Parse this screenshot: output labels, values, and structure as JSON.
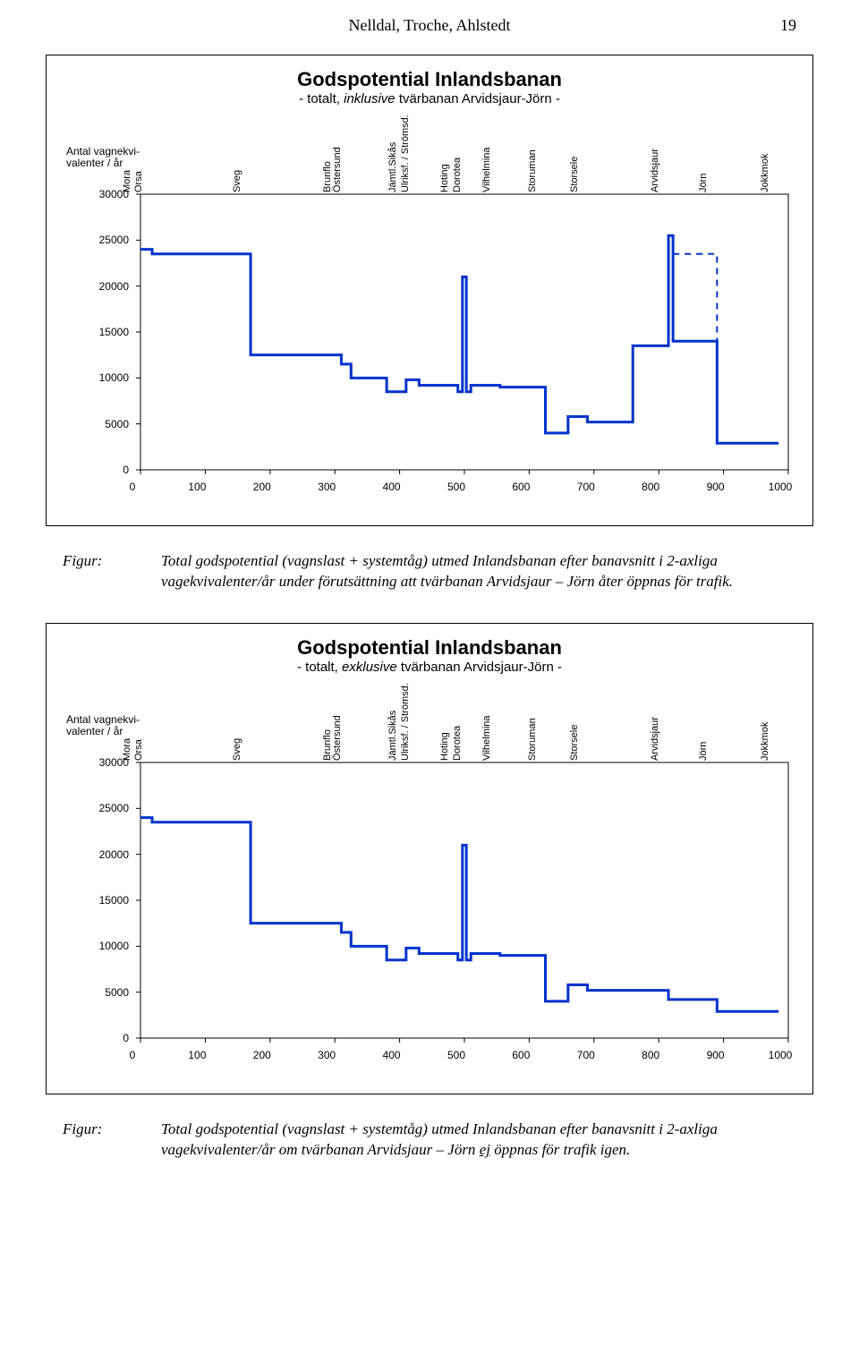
{
  "header": {
    "authors": "Nelldal, Troche, Ahlstedt",
    "page_num": "19"
  },
  "caption1": {
    "lead": "Figur:",
    "text": "Total godspotential (vagnslast + systemtåg) utmed Inlandsbanan efter banavsnitt i 2-axliga vagekvivalenter/år under förutsättning att tvärbanan Arvidsjaur – Jörn åter öppnas för trafik."
  },
  "caption2": {
    "lead": "Figur:",
    "prefix": "Total godspotential (vagnslast + systemtåg) utmed Inlandsbanan efter banavsnitt i 2-axliga vagekvivalenter/år om tvärbanan Arvidsjaur – Jörn ",
    "under": "ej",
    "suffix": " öppnas för trafik igen."
  },
  "chart_common": {
    "ylabel": "Antal vagnekvi-\nvalenter / år",
    "x_range": [
      0,
      1000
    ],
    "y_range": [
      0,
      30000
    ],
    "x_ticks": [
      0,
      100,
      200,
      300,
      400,
      500,
      600,
      700,
      800,
      900,
      1000
    ],
    "y_ticks": [
      0,
      5000,
      10000,
      15000,
      20000,
      25000,
      30000
    ],
    "line_color": "#0033cc",
    "dash_color": "#0033cc",
    "line_width": 3,
    "dash_width": 2,
    "grid_color": "#000000",
    "stations": [
      {
        "x": 0,
        "label": "Mora"
      },
      {
        "x": 18,
        "label": "Orsa"
      },
      {
        "x": 170,
        "label": "Sveg"
      },
      {
        "x": 310,
        "label": "Brunflo"
      },
      {
        "x": 325,
        "label": "Östersund"
      },
      {
        "x": 410,
        "label": "Jämtl.Sikås"
      },
      {
        "x": 430,
        "label": "Ulriksf. / Strömsd."
      },
      {
        "x": 490,
        "label": "Hoting"
      },
      {
        "x": 510,
        "label": "Dorotea"
      },
      {
        "x": 555,
        "label": "Vilhelmina"
      },
      {
        "x": 625,
        "label": "Storuman"
      },
      {
        "x": 690,
        "label": "Storsele"
      },
      {
        "x": 815,
        "label": "Arvidsjaur"
      },
      {
        "x": 890,
        "label": "Jörn"
      },
      {
        "x": 985,
        "label": "Jokkmok"
      }
    ]
  },
  "chart1": {
    "title": "Godspotential Inlandsbanan",
    "subtitle": "- totalt, inklusive tvärbanan Arvidsjaur-Jörn -",
    "steps": [
      [
        0,
        24000
      ],
      [
        18,
        24000
      ],
      [
        18,
        23500
      ],
      [
        170,
        23500
      ],
      [
        170,
        12500
      ],
      [
        310,
        12500
      ],
      [
        310,
        11500
      ],
      [
        325,
        11500
      ],
      [
        325,
        10000
      ],
      [
        380,
        10000
      ],
      [
        380,
        8500
      ],
      [
        410,
        8500
      ],
      [
        410,
        9800
      ],
      [
        430,
        9800
      ],
      [
        430,
        9200
      ],
      [
        490,
        9200
      ],
      [
        490,
        8500
      ],
      [
        497,
        8500
      ],
      [
        497,
        21000
      ],
      [
        503,
        21000
      ],
      [
        503,
        8500
      ],
      [
        510,
        8500
      ],
      [
        510,
        9200
      ],
      [
        555,
        9200
      ],
      [
        555,
        9000
      ],
      [
        625,
        9000
      ],
      [
        625,
        4000
      ],
      [
        660,
        4000
      ],
      [
        660,
        5800
      ],
      [
        690,
        5800
      ],
      [
        690,
        5200
      ],
      [
        760,
        5200
      ],
      [
        760,
        13500
      ],
      [
        815,
        13500
      ],
      [
        815,
        25500
      ],
      [
        822,
        25500
      ],
      [
        822,
        14000
      ],
      [
        890,
        14000
      ],
      [
        890,
        2900
      ],
      [
        985,
        2900
      ]
    ],
    "dash_steps": [
      [
        822,
        23500
      ],
      [
        890,
        23500
      ],
      [
        890,
        2900
      ]
    ]
  },
  "chart2": {
    "title": "Godspotential Inlandsbanan",
    "subtitle": "- totalt, exklusive tvärbanan Arvidsjaur-Jörn -",
    "steps": [
      [
        0,
        24000
      ],
      [
        18,
        24000
      ],
      [
        18,
        23500
      ],
      [
        170,
        23500
      ],
      [
        170,
        12500
      ],
      [
        310,
        12500
      ],
      [
        310,
        11500
      ],
      [
        325,
        11500
      ],
      [
        325,
        10000
      ],
      [
        380,
        10000
      ],
      [
        380,
        8500
      ],
      [
        410,
        8500
      ],
      [
        410,
        9800
      ],
      [
        430,
        9800
      ],
      [
        430,
        9200
      ],
      [
        490,
        9200
      ],
      [
        490,
        8500
      ],
      [
        497,
        8500
      ],
      [
        497,
        21000
      ],
      [
        503,
        21000
      ],
      [
        503,
        8500
      ],
      [
        510,
        8500
      ],
      [
        510,
        9200
      ],
      [
        555,
        9200
      ],
      [
        555,
        9000
      ],
      [
        625,
        9000
      ],
      [
        625,
        4000
      ],
      [
        660,
        4000
      ],
      [
        660,
        5800
      ],
      [
        690,
        5800
      ],
      [
        690,
        5200
      ],
      [
        815,
        5200
      ],
      [
        815,
        4200
      ],
      [
        890,
        4200
      ],
      [
        890,
        2900
      ],
      [
        985,
        2900
      ]
    ]
  }
}
